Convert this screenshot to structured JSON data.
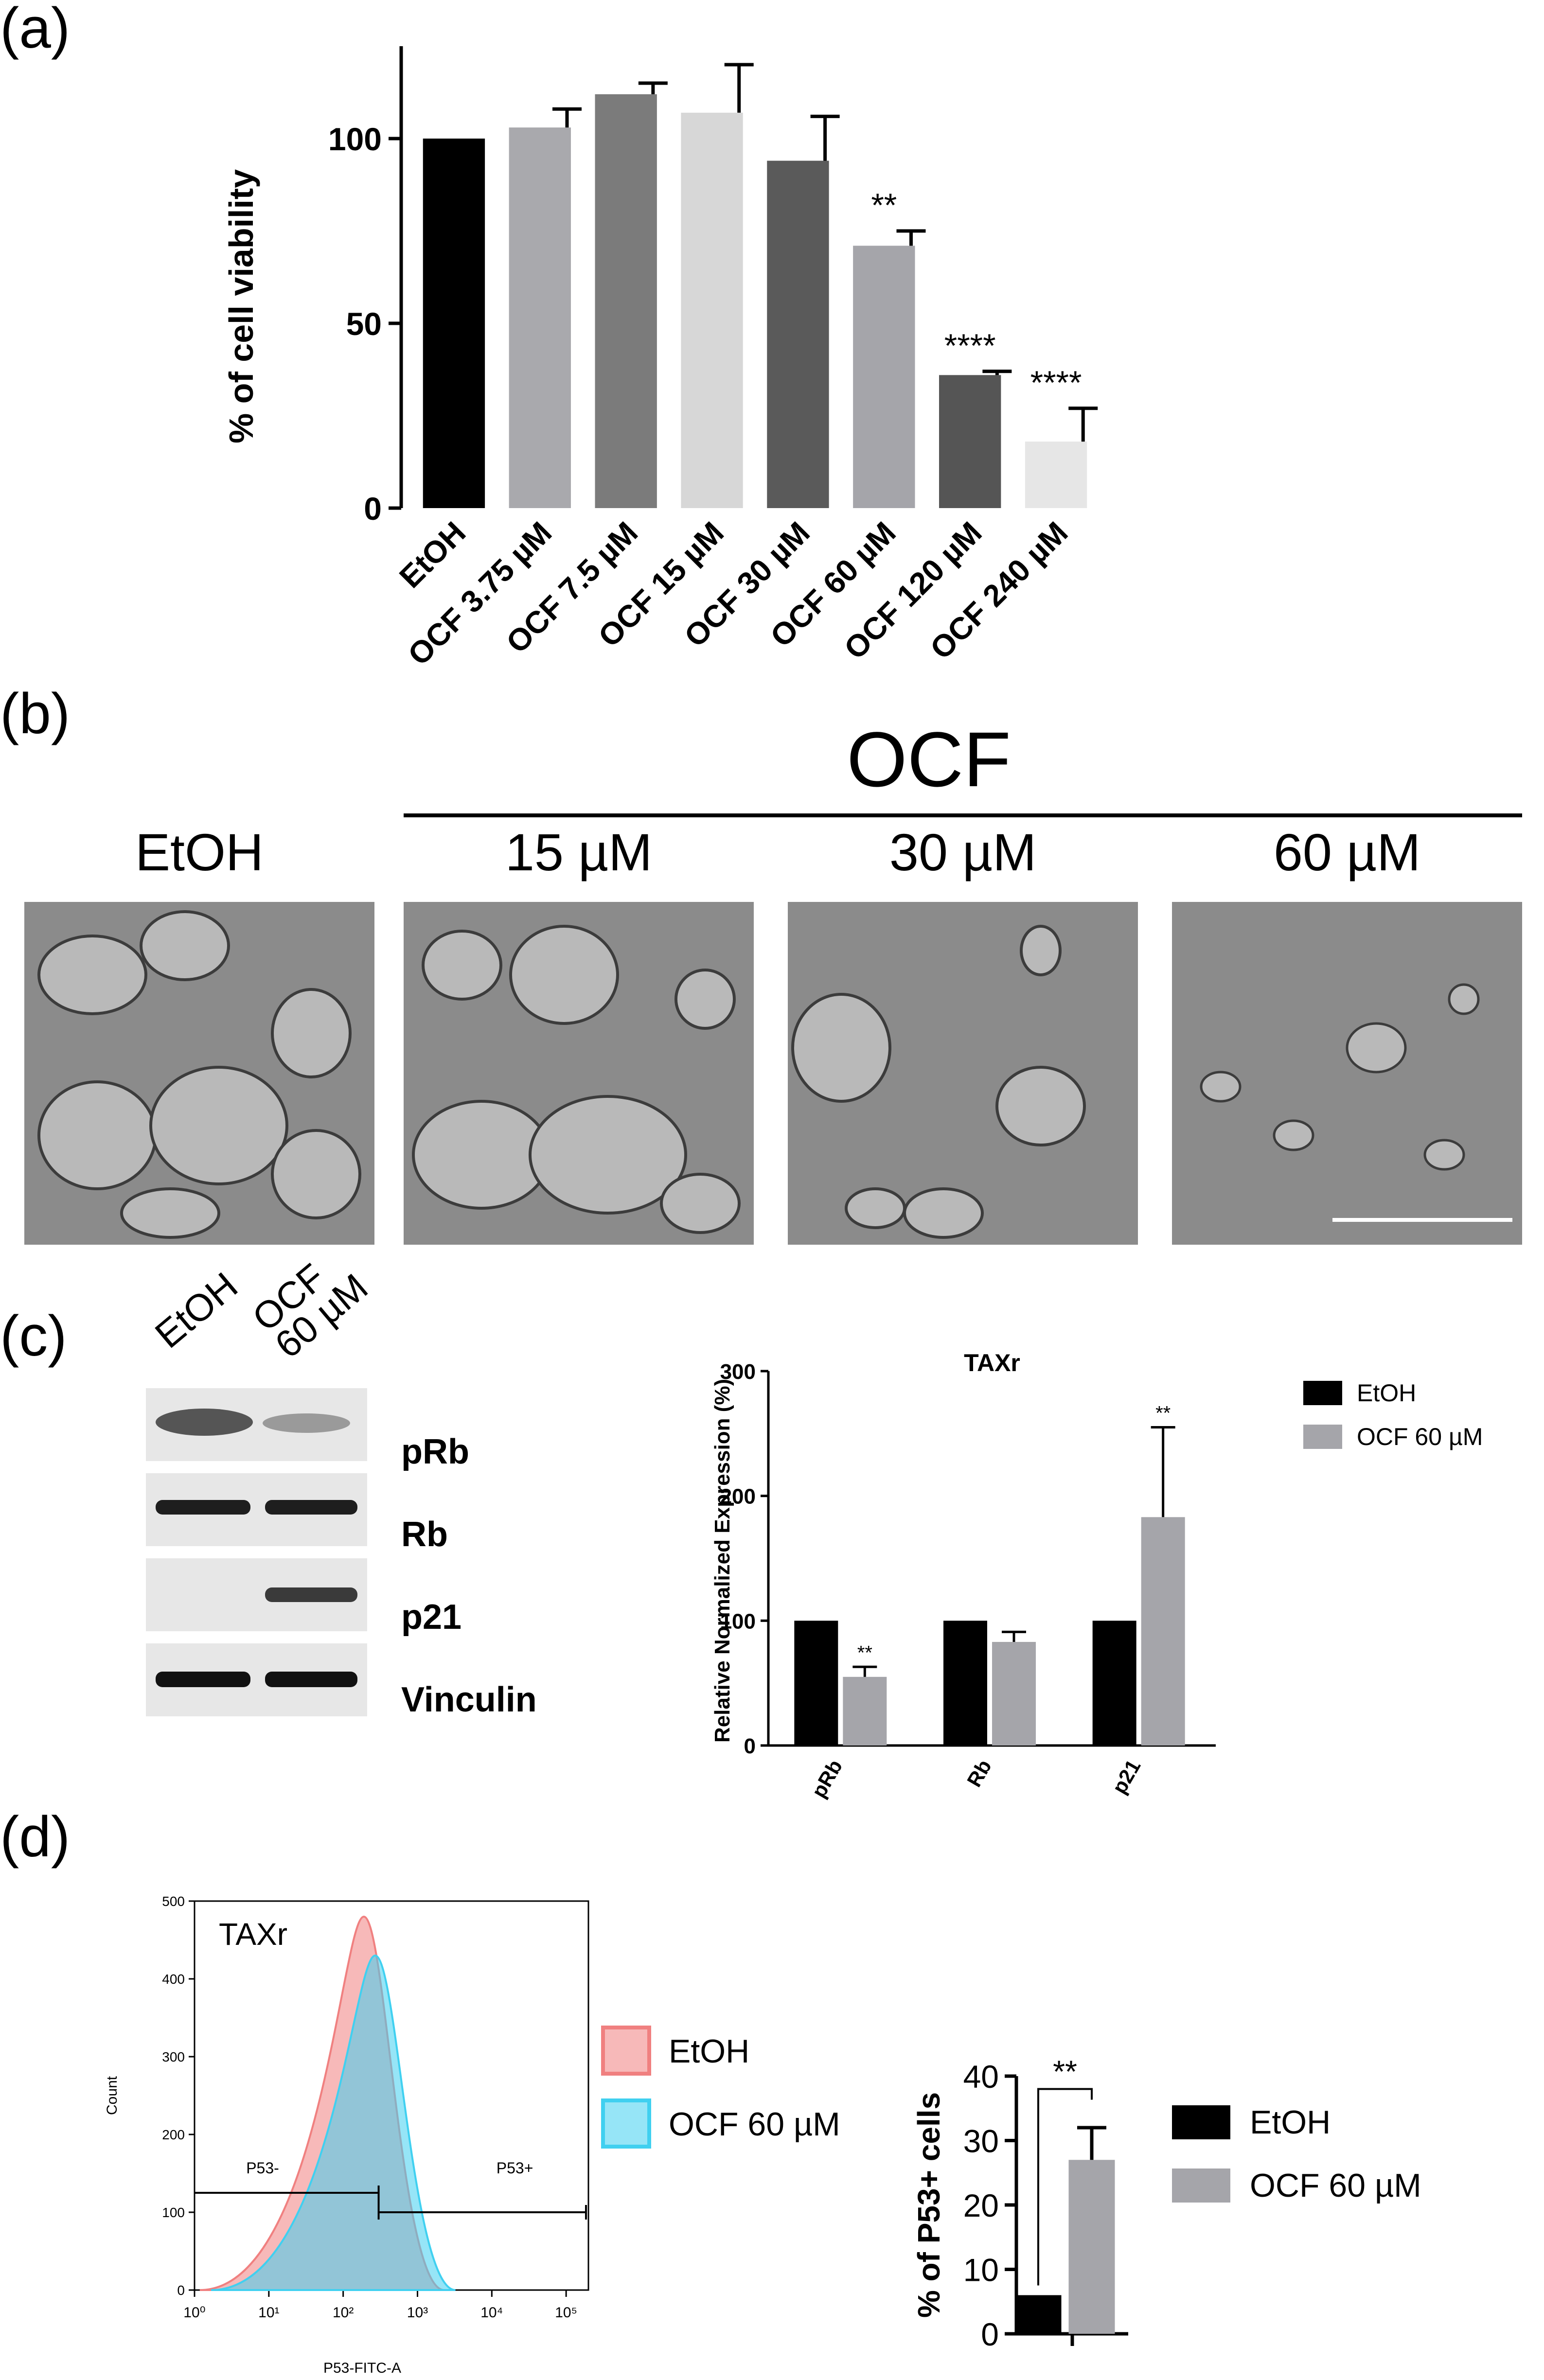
{
  "panel_labels": {
    "a": "(a)",
    "b": "(b)",
    "c": "(c)",
    "d": "(d)"
  },
  "chart_data": [
    {
      "id": "a",
      "type": "bar",
      "ylabel": "% of cell viability",
      "ylim": [
        0,
        125
      ],
      "yticks": [
        0,
        50,
        100
      ],
      "categories": [
        "EtOH",
        "OCF 3.75 µM",
        "OCF 7.5 µM",
        "OCF 15 µM",
        "OCF 30 µM",
        "OCF 60 µM",
        "OCF 120 µM",
        "OCF 240 µM"
      ],
      "values": [
        100,
        103,
        112,
        107,
        94,
        71,
        36,
        18
      ],
      "errors": [
        0,
        5,
        3,
        13,
        12,
        4,
        1,
        9
      ],
      "colors": [
        "#000000",
        "#a9a9ad",
        "#7b7b7b",
        "#d7d7d7",
        "#5a5a5a",
        "#a5a5aa",
        "#555555",
        "#e6e6e6"
      ],
      "significance": [
        "",
        "",
        "",
        "",
        "",
        "**",
        "****",
        "****"
      ]
    },
    {
      "id": "c",
      "type": "bar",
      "title": "TAXr",
      "ylabel": "Relative Normalized Expression (%)",
      "ylim": [
        0,
        300
      ],
      "yticks": [
        0,
        100,
        200,
        300
      ],
      "categories": [
        "pRb",
        "Rb",
        "p21"
      ],
      "series": [
        {
          "name": "EtOH",
          "color": "#000000",
          "values": [
            100,
            100,
            100
          ],
          "errors": [
            0,
            0,
            0
          ]
        },
        {
          "name": "OCF 60 µM",
          "color": "#a5a5aa",
          "values": [
            55,
            83,
            183
          ],
          "errors": [
            8,
            8,
            72
          ]
        }
      ],
      "significance": [
        [
          "",
          "**"
        ],
        [
          "",
          ""
        ],
        [
          "",
          "**"
        ]
      ],
      "legend_position": "top-right"
    },
    {
      "id": "d-histogram",
      "type": "area",
      "title": "TAXr",
      "xlabel": "P53-FITC-A",
      "ylabel": "Count",
      "ylim": [
        0,
        500
      ],
      "yticks": [
        0,
        100,
        200,
        300,
        400,
        500
      ],
      "xscale": "log",
      "xticks": [
        "10⁰",
        "10¹",
        "10²",
        "10³",
        "10⁴",
        "10⁵"
      ],
      "series": [
        {
          "name": "EtOH",
          "color": "#f08080",
          "peak_x": 190,
          "peak_y": 480
        },
        {
          "name": "OCF 60 µM",
          "color": "#40d0f0",
          "peak_x": 270,
          "peak_y": 430
        }
      ],
      "gates": [
        {
          "label": "P53-",
          "y": 125
        },
        {
          "label": "P53+",
          "y": 100
        }
      ]
    },
    {
      "id": "d-bar",
      "type": "bar",
      "ylabel": "% of P53+ cells",
      "ylim": [
        0,
        40
      ],
      "yticks": [
        0,
        10,
        20,
        30,
        40
      ],
      "series": [
        {
          "name": "EtOH",
          "color": "#000000",
          "value": 6,
          "error": 0
        },
        {
          "name": "OCF 60 µM",
          "color": "#a5a5aa",
          "value": 27,
          "error": 5
        }
      ],
      "significance": "**"
    }
  ],
  "panel_b": {
    "group_label": "OCF",
    "conditions": [
      "EtOH",
      "15 µM",
      "30 µM",
      "60 µM"
    ]
  },
  "panel_c_blot": {
    "lane_labels": [
      "EtOH",
      "OCF\n60 µM"
    ],
    "lane_label_line1": "OCF",
    "lane_label_line2": "60 µM",
    "bands": [
      "pRb",
      "Rb",
      "p21",
      "Vinculin"
    ]
  }
}
